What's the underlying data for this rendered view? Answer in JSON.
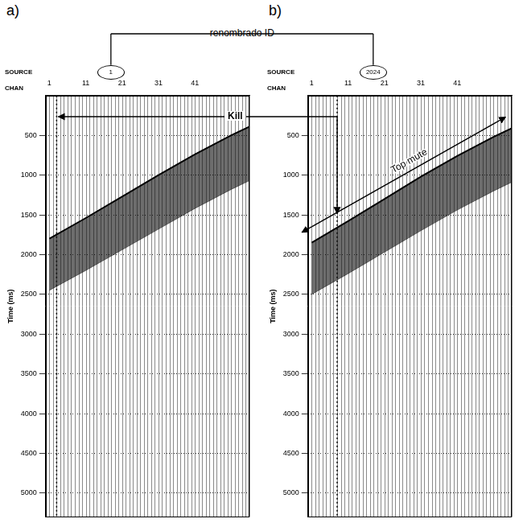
{
  "chart_data": [
    {
      "type": "seismic",
      "panel": "a)",
      "source_label": "SOURCE",
      "source_id": 1,
      "x_label": "CHAN",
      "y_label": "Time (ms)",
      "xlim": [
        0,
        56
      ],
      "xticks": [
        1,
        11,
        21,
        31,
        41
      ],
      "ylim": [
        0,
        5300
      ],
      "yticks": [
        500,
        1000,
        1500,
        2000,
        2500,
        3000,
        3500,
        4000,
        4500,
        5000
      ],
      "grid": true,
      "channels": [
        1,
        11,
        21,
        31,
        41,
        51,
        56
      ],
      "first_break": [
        1800,
        1540,
        1270,
        1000,
        740,
        500,
        390
      ],
      "band_end": [
        2450,
        2200,
        1940,
        1680,
        1420,
        1180,
        1070
      ],
      "killed_channel": 3
    },
    {
      "type": "seismic",
      "panel": "b)",
      "source_label": "SOURCE",
      "source_id": 2024,
      "x_label": "CHAN",
      "y_label": "Time (ms)",
      "xlim": [
        0,
        56
      ],
      "xticks": [
        1,
        11,
        21,
        31,
        41
      ],
      "ylim": [
        0,
        5300
      ],
      "yticks": [
        500,
        1000,
        1500,
        2000,
        2500,
        3000,
        3500,
        4000,
        4500,
        5000
      ],
      "grid": true,
      "channels": [
        1,
        11,
        21,
        31,
        41,
        51,
        56
      ],
      "first_break": [
        1850,
        1580,
        1300,
        1020,
        760,
        520,
        410
      ],
      "band_end": [
        2500,
        2240,
        1970,
        1700,
        1440,
        1200,
        1090
      ],
      "killed_channel": 8,
      "top_mute": {
        "channels": [
          1,
          52
        ],
        "time": [
          1650,
          330
        ]
      }
    }
  ],
  "annotations": {
    "link_label": "renombrado ID",
    "kill_label": "Kill",
    "top_mute_label": "Top mute"
  }
}
